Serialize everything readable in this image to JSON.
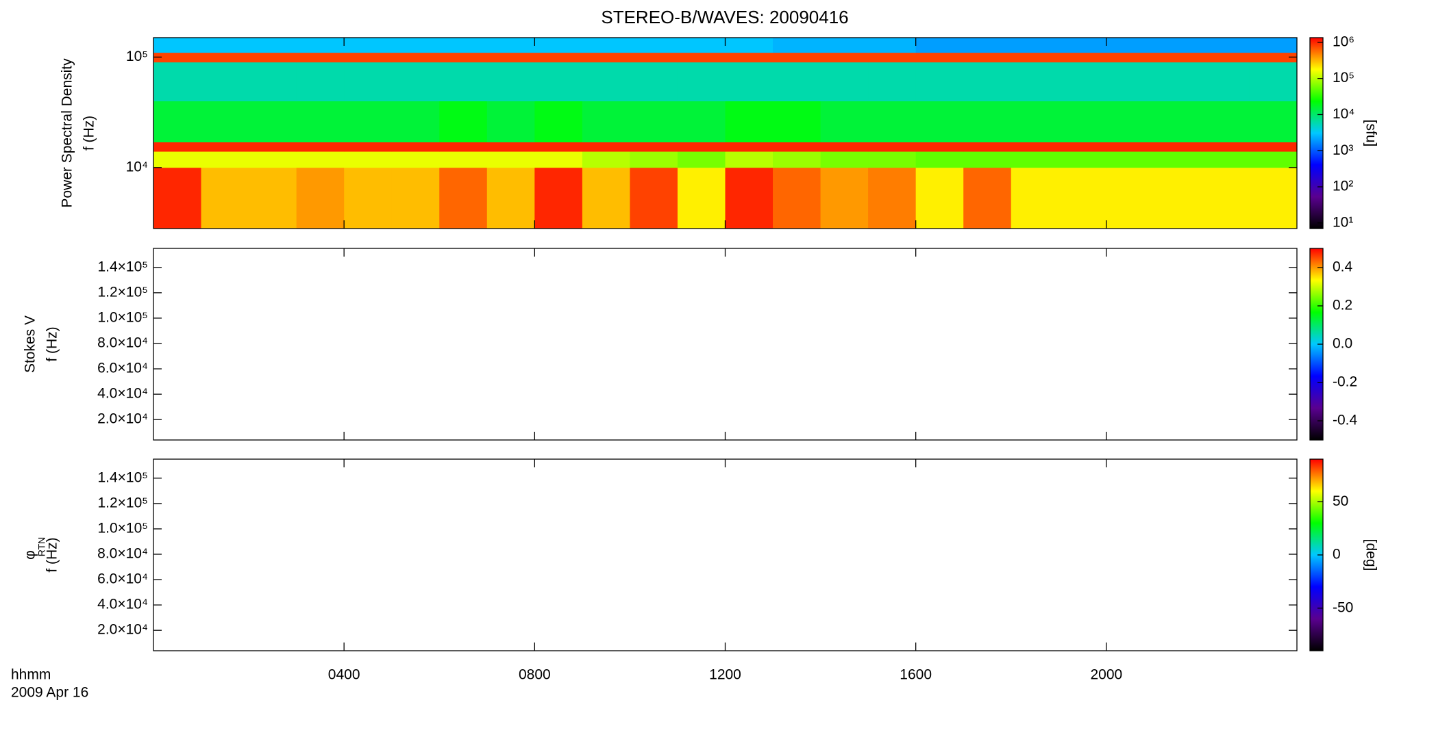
{
  "title": "STEREO-B/WAVES: 20090416",
  "colormap": [
    "#000000",
    "#5a0090",
    "#0000ff",
    "#00c8ff",
    "#00ff00",
    "#ffff00",
    "#ff0000"
  ],
  "x_axis": {
    "xlim": [
      0,
      24
    ],
    "xticks": [
      {
        "value": 4,
        "label": "0400"
      },
      {
        "value": 8,
        "label": "0800"
      },
      {
        "value": 12,
        "label": "1200"
      },
      {
        "value": 16,
        "label": "1600"
      },
      {
        "value": 20,
        "label": "2000"
      }
    ],
    "label": "hhmm",
    "date": "2009 Apr 16"
  },
  "chart_data": [
    {
      "type": "heatmap",
      "ylabel_lines": [
        "Power Spectral Density",
        "f (Hz)"
      ],
      "ylog": true,
      "ylim": [
        2800,
        150000
      ],
      "yticks": [
        {
          "value": 10000,
          "label": "10⁴"
        },
        {
          "value": 100000,
          "label": "10⁵"
        }
      ],
      "x": [
        0,
        1,
        2,
        3,
        4,
        5,
        6,
        7,
        8,
        9,
        10,
        11,
        12,
        13,
        14,
        15,
        16,
        17,
        18,
        19,
        20,
        21,
        22,
        23,
        24
      ],
      "y": [
        2800,
        10000,
        14000,
        17000,
        40000,
        90000,
        110000,
        150000
      ],
      "values": [
        [
          1000000,
          300000,
          300000,
          400000,
          300000,
          300000,
          600000,
          300000,
          1000000,
          300000,
          800000,
          200000,
          1000000,
          600000,
          400000,
          500000,
          200000,
          600000,
          200000,
          200000,
          200000,
          200000,
          200000,
          200000
        ],
        [
          150000,
          150000,
          150000,
          150000,
          150000,
          150000,
          150000,
          150000,
          150000,
          100000,
          80000,
          60000,
          100000,
          80000,
          60000,
          60000,
          50000,
          50000,
          50000,
          50000,
          50000,
          50000,
          50000,
          50000
        ],
        [
          1000000,
          1000000,
          1000000,
          1000000,
          1000000,
          1000000,
          1000000,
          1000000,
          1000000,
          1000000,
          1000000,
          1000000,
          1000000,
          1000000,
          1000000,
          1000000,
          1000000,
          1000000,
          1000000,
          1000000,
          1000000,
          1000000,
          1000000,
          1000000
        ],
        [
          15000,
          15000,
          15000,
          15000,
          15000,
          15000,
          20000,
          15000,
          20000,
          15000,
          15000,
          15000,
          20000,
          20000,
          15000,
          15000,
          15000,
          15000,
          15000,
          15000,
          15000,
          15000,
          15000,
          15000
        ],
        [
          6000,
          6000,
          6000,
          6000,
          6000,
          6000,
          6000,
          6000,
          6000,
          6000,
          6000,
          6000,
          6000,
          6000,
          6000,
          6000,
          6000,
          6000,
          6000,
          6000,
          6000,
          6000,
          6000,
          6000
        ],
        [
          800000,
          800000,
          800000,
          800000,
          800000,
          800000,
          800000,
          800000,
          800000,
          800000,
          800000,
          800000,
          800000,
          800000,
          800000,
          800000,
          800000,
          800000,
          800000,
          800000,
          800000,
          800000,
          800000,
          800000
        ],
        [
          3000,
          3000,
          3000,
          3000,
          3000,
          3000,
          3000,
          3000,
          3000,
          3000,
          3000,
          3000,
          3000,
          2500,
          2500,
          2500,
          2000,
          2000,
          2000,
          2000,
          2000,
          2000,
          2000,
          2000
        ]
      ],
      "zlog": true,
      "zlim": [
        7,
        1350000
      ],
      "zticks": [
        {
          "value": 10,
          "label": "10¹"
        },
        {
          "value": 100,
          "label": "10²"
        },
        {
          "value": 1000,
          "label": "10³"
        },
        {
          "value": 10000,
          "label": "10⁴"
        },
        {
          "value": 100000,
          "label": "10⁵"
        },
        {
          "value": 1000000,
          "label": "10⁶"
        }
      ],
      "zlabel": "[sfu]"
    },
    {
      "type": "heatmap",
      "ylabel_lines": [
        "Stokes V",
        "f (Hz)"
      ],
      "ylog": false,
      "ylim": [
        3900,
        155000
      ],
      "yticks": [
        {
          "value": 20000,
          "label": "2.0×10⁴"
        },
        {
          "value": 40000,
          "label": "4.0×10⁴"
        },
        {
          "value": 60000,
          "label": "6.0×10⁴"
        },
        {
          "value": 80000,
          "label": "8.0×10⁴"
        },
        {
          "value": 100000,
          "label": "1.0×10⁵"
        },
        {
          "value": 120000,
          "label": "1.2×10⁵"
        },
        {
          "value": 140000,
          "label": "1.4×10⁵"
        }
      ],
      "zlog": false,
      "zlim": [
        -0.5,
        0.5
      ],
      "zticks": [
        -0.4,
        -0.2,
        {
          "value": 0,
          "label": "0.0"
        },
        0.2,
        0.4
      ]
    },
    {
      "type": "heatmap",
      "ylabel_lines": [
        "φ",
        "f (Hz)"
      ],
      "ylabel_subscript": "RTN",
      "ylog": false,
      "ylim": [
        3900,
        155000
      ],
      "yticks": [
        {
          "value": 20000,
          "label": "2.0×10⁴"
        },
        {
          "value": 40000,
          "label": "4.0×10⁴"
        },
        {
          "value": 60000,
          "label": "6.0×10⁴"
        },
        {
          "value": 80000,
          "label": "8.0×10⁴"
        },
        {
          "value": 100000,
          "label": "1.0×10⁵"
        },
        {
          "value": 120000,
          "label": "1.2×10⁵"
        },
        {
          "value": 140000,
          "label": "1.4×10⁵"
        }
      ],
      "zlog": false,
      "zlim": [
        -90,
        90
      ],
      "zticks": [
        -50,
        0,
        50
      ],
      "zlabel": "[deg]"
    }
  ]
}
